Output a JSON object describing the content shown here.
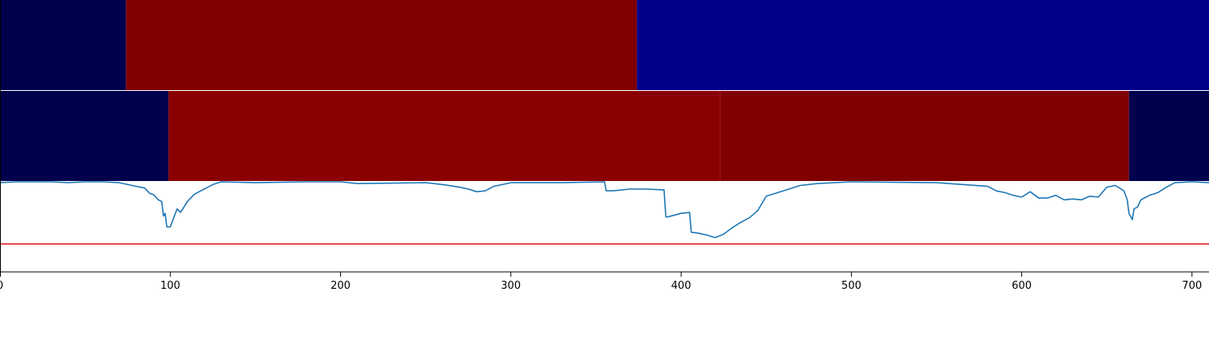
{
  "chart_data": {
    "type": "line",
    "xlim": [
      0,
      710
    ],
    "ylim": [
      0,
      1
    ],
    "x_ticks": [
      0,
      100,
      200,
      300,
      400,
      500,
      600,
      700
    ],
    "x_tick_labels": [
      "0",
      "100",
      "200",
      "300",
      "400",
      "500",
      "600",
      "700"
    ],
    "segment_rows": [
      {
        "segments": [
          {
            "start": 0,
            "end": 74,
            "color": "#00004c"
          },
          {
            "start": 74,
            "end": 374,
            "color": "#800000"
          },
          {
            "start": 374,
            "end": 710,
            "color": "#00008b"
          }
        ]
      },
      {
        "segments": [
          {
            "start": 0,
            "end": 99,
            "color": "#00004c"
          },
          {
            "start": 99,
            "end": 423,
            "color": "#8b0000"
          },
          {
            "start": 423,
            "end": 663,
            "color": "#800000"
          },
          {
            "start": 663,
            "end": 710,
            "color": "#00004c"
          }
        ]
      }
    ],
    "threshold": {
      "value": 0.31,
      "color": "#dd1111"
    },
    "series": [
      {
        "color": "#1f77b4",
        "x": [
          0,
          10,
          20,
          30,
          40,
          50,
          60,
          70,
          75,
          80,
          85,
          88,
          90,
          93,
          95,
          96,
          97,
          98,
          100,
          102,
          104,
          106,
          108,
          110,
          112,
          114,
          116,
          118,
          120,
          125,
          130,
          150,
          180,
          200,
          210,
          250,
          260,
          270,
          275,
          280,
          285,
          290,
          300,
          330,
          355,
          356,
          360,
          370,
          380,
          390,
          391,
          392,
          400,
          405,
          406,
          410,
          415,
          420,
          425,
          430,
          435,
          440,
          445,
          450,
          460,
          470,
          480,
          500,
          550,
          580,
          585,
          590,
          595,
          600,
          605,
          610,
          615,
          620,
          625,
          630,
          635,
          640,
          645,
          650,
          655,
          660,
          662,
          663,
          665,
          666,
          668,
          670,
          675,
          680,
          685,
          690,
          700,
          710
        ],
        "y": [
          0.99,
          1.0,
          1.0,
          1.0,
          0.99,
          1.0,
          1.0,
          0.99,
          0.97,
          0.95,
          0.93,
          0.87,
          0.86,
          0.8,
          0.78,
          0.62,
          0.65,
          0.5,
          0.5,
          0.6,
          0.7,
          0.66,
          0.72,
          0.78,
          0.82,
          0.86,
          0.88,
          0.9,
          0.92,
          0.97,
          1.0,
          0.99,
          1.0,
          1.0,
          0.98,
          0.99,
          0.97,
          0.94,
          0.92,
          0.89,
          0.9,
          0.95,
          0.99,
          0.99,
          1.0,
          0.9,
          0.9,
          0.92,
          0.92,
          0.91,
          0.61,
          0.61,
          0.65,
          0.66,
          0.44,
          0.43,
          0.41,
          0.38,
          0.42,
          0.49,
          0.55,
          0.6,
          0.68,
          0.84,
          0.9,
          0.96,
          0.98,
          1.0,
          0.99,
          0.95,
          0.9,
          0.88,
          0.85,
          0.83,
          0.89,
          0.82,
          0.82,
          0.85,
          0.8,
          0.81,
          0.8,
          0.84,
          0.83,
          0.94,
          0.96,
          0.9,
          0.8,
          0.65,
          0.58,
          0.7,
          0.72,
          0.8,
          0.85,
          0.88,
          0.94,
          0.99,
          1.0,
          0.99
        ]
      }
    ]
  }
}
